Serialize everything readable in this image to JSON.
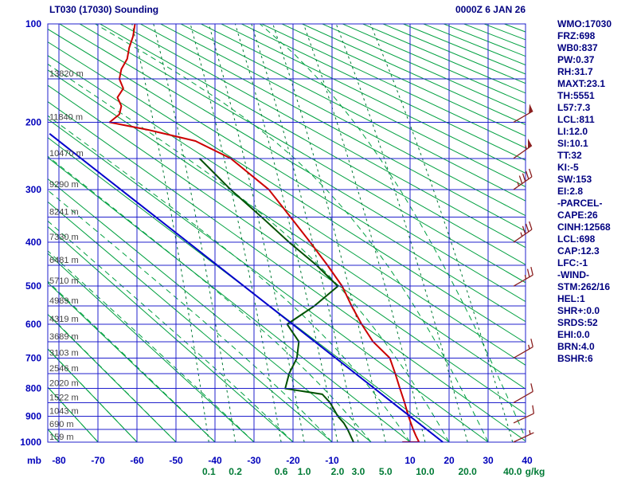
{
  "window": {
    "title": "LT030 (17030) Sounding",
    "datetime": "0000Z  6 JAN 26"
  },
  "panel": {
    "lines": [
      "WMO:17030",
      "FRZ:698",
      "WB0:837",
      "PW:0.37",
      "RH:31.7",
      "MAXT:23.1",
      "TH:5551",
      "L57:7.3",
      "LCL:811",
      "LI:12.0",
      "SI:10.1",
      "TT:32",
      "KI:-5",
      "SW:153",
      "EI:2.8",
      "-PARCEL-",
      "CAPE:26",
      "CINH:12568",
      "LCL:698",
      "CAP:12.3",
      "LFC:-1",
      "-WIND-",
      "STM:262/16",
      "HEL:1",
      "SHR+:0.0",
      "SRDS:52",
      "EHI:0.0",
      "BRN:4.0",
      "BSHR:6"
    ]
  },
  "colors": {
    "title_text": "#000080",
    "axis_text": "#0000bb",
    "grid_blue": "#2020cc",
    "adiabat_green": "#00a040",
    "mixing_green": "#007a35",
    "temperature_red": "#cc0000",
    "dewpoint_green": "#005000",
    "parcel_blue": "#0000cc",
    "barb_maroon": "#8b2020",
    "height_text": "#444444"
  },
  "chart_data": {
    "type": "line",
    "subtype": "stuve_sounding",
    "title": "LT030 (17030) Sounding",
    "datetime": "0000Z  6 JAN 26",
    "pressure_axis": {
      "unit": "mb",
      "ticks": [
        100,
        200,
        300,
        400,
        500,
        600,
        700,
        800,
        900,
        1000
      ],
      "grid_step_mb": 50,
      "range": [
        100,
        1000
      ]
    },
    "temperature_axis": {
      "unit": "C",
      "ticks": [
        -80,
        -70,
        -60,
        -50,
        -40,
        -30,
        -20,
        -10,
        10,
        20,
        30,
        40
      ],
      "range": [
        -83,
        40
      ]
    },
    "mixing_ratio_labels": {
      "unit": "g/kg",
      "values": [
        "0.1",
        "0.2",
        "0.6",
        "1.0",
        "2.0",
        "3.0",
        "5.0",
        "10.0",
        "20.0",
        "40.0"
      ]
    },
    "height_labels": [
      {
        "p": 150,
        "text": "13820 m"
      },
      {
        "p": 200,
        "text": "11840 m"
      },
      {
        "p": 250,
        "text": "10470 m"
      },
      {
        "p": 300,
        "text": "9290 m"
      },
      {
        "p": 350,
        "text": "8241 m"
      },
      {
        "p": 400,
        "text": "7330 m"
      },
      {
        "p": 450,
        "text": "6481 m"
      },
      {
        "p": 500,
        "text": "5710 m"
      },
      {
        "p": 550,
        "text": "4989 m"
      },
      {
        "p": 600,
        "text": "4319 m"
      },
      {
        "p": 650,
        "text": "3689 m"
      },
      {
        "p": 700,
        "text": "3103 m"
      },
      {
        "p": 750,
        "text": "2546 m"
      },
      {
        "p": 800,
        "text": "2020 m"
      },
      {
        "p": 850,
        "text": "1522 m"
      },
      {
        "p": 900,
        "text": "1043 m"
      },
      {
        "p": 950,
        "text": "690 m"
      },
      {
        "p": 1000,
        "text": "159 m"
      }
    ],
    "series": [
      {
        "name": "temperature",
        "color": "#cc0000",
        "points_p_T": [
          [
            1000,
            8.0
          ],
          [
            1000,
            12.3
          ],
          [
            975,
            11.5
          ],
          [
            950,
            10.8
          ],
          [
            925,
            10.2
          ],
          [
            900,
            9.6
          ],
          [
            850,
            8.6
          ],
          [
            800,
            7.4
          ],
          [
            750,
            6.2
          ],
          [
            700,
            4.8
          ],
          [
            650,
            0.5
          ],
          [
            600,
            -2.4
          ],
          [
            550,
            -5.0
          ],
          [
            500,
            -7.4
          ],
          [
            450,
            -11.2
          ],
          [
            400,
            -15.6
          ],
          [
            350,
            -20.6
          ],
          [
            300,
            -26.2
          ],
          [
            250,
            -36.0
          ],
          [
            225,
            -45.0
          ],
          [
            210,
            -57.0
          ],
          [
            200,
            -67.0
          ],
          [
            190,
            -64.5
          ],
          [
            180,
            -64.0
          ],
          [
            170,
            -65.0
          ],
          [
            160,
            -63.5
          ],
          [
            150,
            -64.5
          ],
          [
            140,
            -64.0
          ],
          [
            130,
            -62.5
          ],
          [
            120,
            -62.0
          ],
          [
            110,
            -61.0
          ],
          [
            100,
            -60.5
          ]
        ]
      },
      {
        "name": "dewpoint",
        "color": "#005000",
        "points_p_T": [
          [
            1000,
            -4.5
          ],
          [
            950,
            -6.0
          ],
          [
            925,
            -7.0
          ],
          [
            900,
            -8.5
          ],
          [
            850,
            -10.5
          ],
          [
            820,
            -12.5
          ],
          [
            800,
            -22.0
          ],
          [
            750,
            -21.0
          ],
          [
            700,
            -19.0
          ],
          [
            650,
            -18.5
          ],
          [
            600,
            -21.5
          ],
          [
            550,
            -14.5
          ],
          [
            500,
            -8.5
          ],
          [
            450,
            -14.0
          ],
          [
            400,
            -21.0
          ],
          [
            350,
            -28.0
          ],
          [
            300,
            -36.0
          ],
          [
            250,
            -44.0
          ]
        ]
      },
      {
        "name": "parcel",
        "color": "#0000cc",
        "points_p_T": [
          [
            1000,
            18.4
          ],
          [
            215,
            -82.4
          ]
        ]
      }
    ],
    "winds": [
      {
        "p": 1000,
        "dir": 245,
        "spd": 5
      },
      {
        "p": 925,
        "dir": 245,
        "spd": 10
      },
      {
        "p": 850,
        "dir": 240,
        "spd": 10
      },
      {
        "p": 700,
        "dir": 240,
        "spd": 15
      },
      {
        "p": 500,
        "dir": 240,
        "spd": 25
      },
      {
        "p": 400,
        "dir": 235,
        "spd": 35
      },
      {
        "p": 300,
        "dir": 235,
        "spd": 45
      },
      {
        "p": 250,
        "dir": 235,
        "spd": 55
      },
      {
        "p": 200,
        "dir": 240,
        "spd": 50
      }
    ]
  }
}
